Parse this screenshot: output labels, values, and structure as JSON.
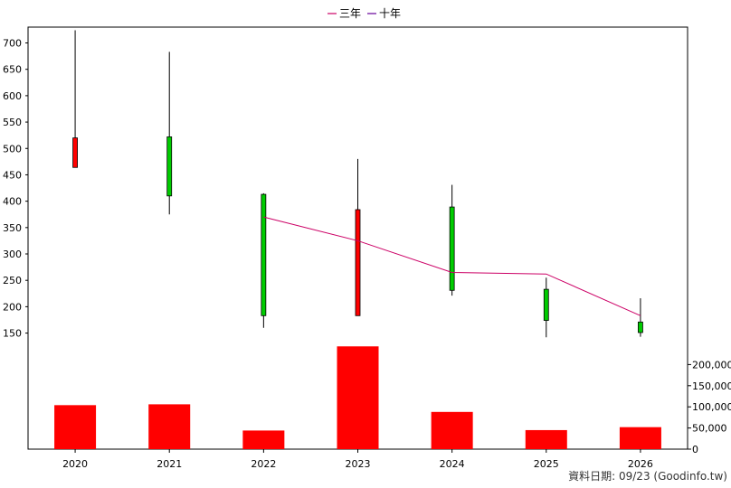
{
  "legend": [
    {
      "label": "三年",
      "color": "#cc0066"
    },
    {
      "label": "十年",
      "color": "#660099"
    }
  ],
  "footer": "資料日期: 09/23  (Goodinfo.tw)",
  "chart_data": {
    "type": "candlestick+bar",
    "categories": [
      "2020",
      "2021",
      "2022",
      "2023",
      "2024",
      "2025",
      "2026"
    ],
    "price_axis": {
      "ylim": [
        127,
        730
      ],
      "ticks": [
        150,
        200,
        250,
        300,
        350,
        400,
        450,
        500,
        550,
        600,
        650,
        700
      ]
    },
    "volume_axis": {
      "ylim": [
        0,
        250000
      ],
      "ticks": [
        0,
        50000,
        100000,
        150000,
        200000
      ],
      "tick_labels": [
        "0",
        "50,000",
        "100,000",
        "150,000",
        "200,000"
      ]
    },
    "grid": true,
    "candles": [
      {
        "year": "2020",
        "open": 464,
        "high": 724,
        "low": 464,
        "close": 520,
        "color": "red"
      },
      {
        "year": "2021",
        "open": 522,
        "high": 683,
        "low": 375,
        "close": 410,
        "color": "green"
      },
      {
        "year": "2022",
        "open": 413,
        "high": 415,
        "low": 160,
        "close": 183,
        "color": "green"
      },
      {
        "year": "2023",
        "open": 183,
        "high": 480,
        "low": 183,
        "close": 384,
        "color": "red"
      },
      {
        "year": "2024",
        "open": 389,
        "high": 431,
        "low": 221,
        "close": 231,
        "color": "green"
      },
      {
        "year": "2025",
        "open": 233,
        "high": 255,
        "low": 142,
        "close": 174,
        "color": "green"
      },
      {
        "year": "2026",
        "open": 171,
        "high": 216,
        "low": 143,
        "close": 151,
        "color": "green"
      }
    ],
    "series": [
      {
        "name": "三年",
        "x": [
          "2022",
          "2023",
          "2024",
          "2025",
          "2026"
        ],
        "values": [
          370,
          325,
          265,
          262,
          183
        ]
      }
    ],
    "volume": [
      104000,
      106000,
      44000,
      243000,
      88000,
      45000,
      52000
    ]
  }
}
